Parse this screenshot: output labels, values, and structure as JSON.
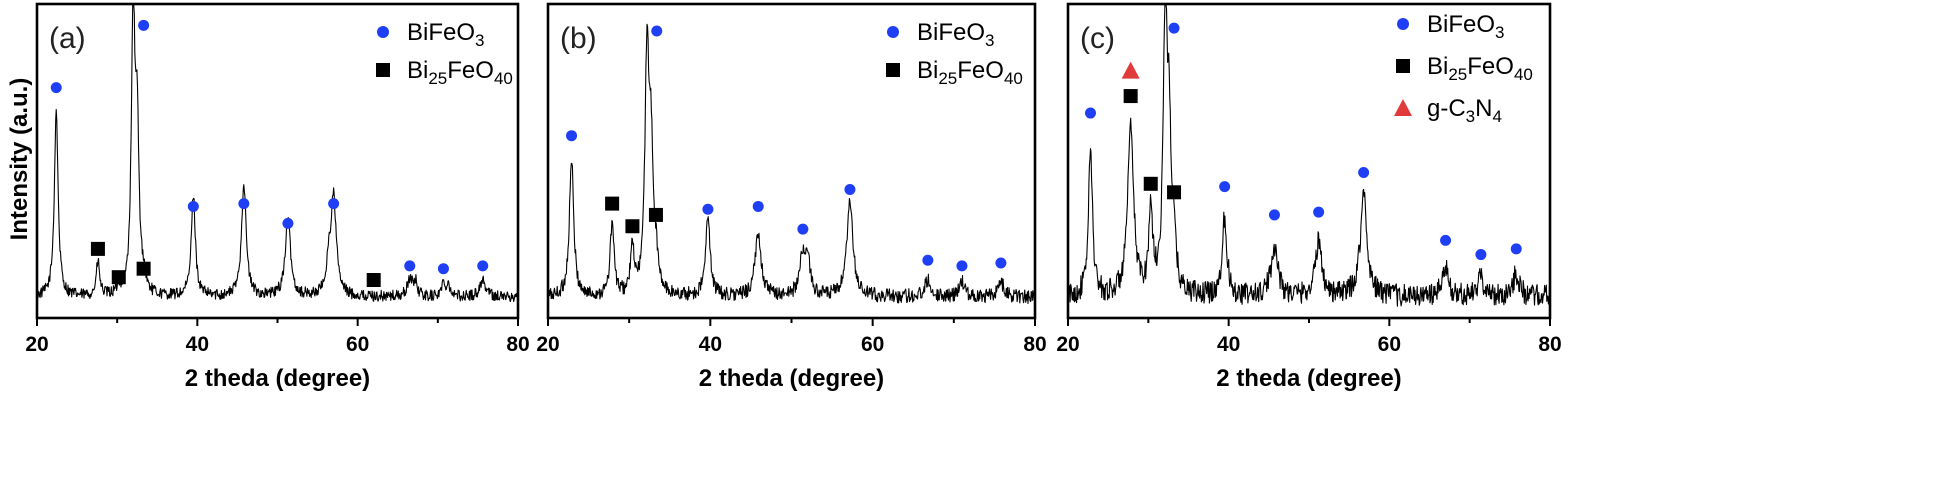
{
  "figure": {
    "ylabel": "Intensity (a.u.)"
  },
  "colors": {
    "bifeo3_marker": "#1f3ff5",
    "bi25feo40_marker": "#000000",
    "gc3n4_marker": "#e03a3a",
    "trace": "#000000"
  },
  "chart_data": [
    {
      "type": "line",
      "panel": "(a)",
      "xlabel": "2 theda (degree)",
      "ylabel": "Intensity (a.u.)",
      "xlim": [
        20,
        80
      ],
      "xticks": [
        20,
        40,
        60,
        80
      ],
      "xtick_labels": [
        "20",
        "40",
        "60",
        "80"
      ],
      "grid": false,
      "legend_position": "top-right",
      "legend": [
        {
          "marker": "circle",
          "text": "BiFeO",
          "sub": "3"
        },
        {
          "marker": "square",
          "text": "Bi",
          "sub": "25",
          "text2": "FeO",
          "sub2": "40"
        }
      ],
      "noise": 0.02,
      "peaks": [
        {
          "x": 22.4,
          "h": 0.66,
          "w": 0.28,
          "phase": "BiFeO3",
          "label_y": 0.74
        },
        {
          "x": 27.6,
          "h": 0.12,
          "w": 0.25,
          "phase": "Bi25FeO40",
          "label_y": 0.17
        },
        {
          "x": 30.2,
          "h": 0.03,
          "w": 0.25,
          "phase": "Bi25FeO40",
          "label_y": 0.07
        },
        {
          "x": 32.0,
          "h": 1.02,
          "w": 0.26
        },
        {
          "x": 32.5,
          "h": 0.55,
          "w": 0.26
        },
        {
          "x": 33.3,
          "h": 0.05,
          "w": 0.3,
          "phase": "Bi25FeO40",
          "label_y": 0.1
        },
        {
          "x": 33.3,
          "h": 0.0,
          "w": 0.3,
          "phase": "BiFeO3",
          "label_y": 0.96
        },
        {
          "x": 39.5,
          "h": 0.36,
          "w": 0.3,
          "phase": "BiFeO3",
          "label_y": 0.32
        },
        {
          "x": 45.8,
          "h": 0.4,
          "w": 0.35,
          "phase": "BiFeO3",
          "label_y": 0.33
        },
        {
          "x": 51.3,
          "h": 0.27,
          "w": 0.4,
          "phase": "BiFeO3",
          "label_y": 0.26
        },
        {
          "x": 56.4,
          "h": 0.1,
          "w": 0.35
        },
        {
          "x": 57.0,
          "h": 0.34,
          "w": 0.4,
          "phase": "BiFeO3",
          "label_y": 0.33
        },
        {
          "x": 62.0,
          "h": 0.0,
          "w": 0.4,
          "phase": "Bi25FeO40",
          "label_y": 0.06
        },
        {
          "x": 66.5,
          "h": 0.06,
          "w": 0.35,
          "phase": "BiFeO3",
          "label_y": 0.11
        },
        {
          "x": 67.2,
          "h": 0.05,
          "w": 0.3
        },
        {
          "x": 70.7,
          "h": 0.04,
          "w": 0.35,
          "phase": "BiFeO3",
          "label_y": 0.1
        },
        {
          "x": 71.3,
          "h": 0.04,
          "w": 0.3
        },
        {
          "x": 75.6,
          "h": 0.06,
          "w": 0.45,
          "phase": "BiFeO3",
          "label_y": 0.11
        }
      ]
    },
    {
      "type": "line",
      "panel": "(b)",
      "xlabel": "2 theda (degree)",
      "xlim": [
        20,
        80
      ],
      "xticks": [
        20,
        40,
        60,
        80
      ],
      "xtick_labels": [
        "20",
        "40",
        "60",
        "80"
      ],
      "grid": false,
      "legend_position": "top-right",
      "legend": [
        {
          "marker": "circle",
          "text": "BiFeO",
          "sub": "3"
        },
        {
          "marker": "square",
          "text": "Bi",
          "sub": "25",
          "text2": "FeO",
          "sub2": "40"
        }
      ],
      "noise": 0.025,
      "peaks": [
        {
          "x": 22.9,
          "h": 0.48,
          "w": 0.32,
          "phase": "BiFeO3",
          "label_y": 0.57
        },
        {
          "x": 27.9,
          "h": 0.26,
          "w": 0.28,
          "phase": "Bi25FeO40",
          "label_y": 0.33
        },
        {
          "x": 30.4,
          "h": 0.16,
          "w": 0.28,
          "phase": "Bi25FeO40",
          "label_y": 0.25
        },
        {
          "x": 32.2,
          "h": 0.84,
          "w": 0.3
        },
        {
          "x": 32.7,
          "h": 0.45,
          "w": 0.3
        },
        {
          "x": 33.3,
          "h": 0.1,
          "w": 0.3,
          "phase": "Bi25FeO40",
          "label_y": 0.29
        },
        {
          "x": 33.4,
          "h": 0.0,
          "w": 0.3,
          "phase": "BiFeO3",
          "label_y": 0.94
        },
        {
          "x": 39.7,
          "h": 0.27,
          "w": 0.35,
          "phase": "BiFeO3",
          "label_y": 0.31
        },
        {
          "x": 45.9,
          "h": 0.22,
          "w": 0.45,
          "phase": "BiFeO3",
          "label_y": 0.32
        },
        {
          "x": 51.4,
          "h": 0.14,
          "w": 0.45,
          "phase": "BiFeO3",
          "label_y": 0.24
        },
        {
          "x": 52.0,
          "h": 0.1,
          "w": 0.4
        },
        {
          "x": 57.2,
          "h": 0.33,
          "w": 0.45,
          "phase": "BiFeO3",
          "label_y": 0.38
        },
        {
          "x": 66.8,
          "h": 0.06,
          "w": 0.45,
          "phase": "BiFeO3",
          "label_y": 0.13
        },
        {
          "x": 71.0,
          "h": 0.05,
          "w": 0.45,
          "phase": "BiFeO3",
          "label_y": 0.11
        },
        {
          "x": 75.8,
          "h": 0.05,
          "w": 0.5,
          "phase": "BiFeO3",
          "label_y": 0.12
        }
      ]
    },
    {
      "type": "line",
      "panel": "(c)",
      "xlabel": "2 theda (degree)",
      "xlim": [
        20,
        80
      ],
      "xticks": [
        20,
        40,
        60,
        80
      ],
      "xtick_labels": [
        "20",
        "40",
        "60",
        "80"
      ],
      "grid": false,
      "legend_position": "top-right",
      "legend": [
        {
          "marker": "circle",
          "text": "BiFeO",
          "sub": "3"
        },
        {
          "marker": "square",
          "text": "Bi",
          "sub": "25",
          "text2": "FeO",
          "sub2": "40"
        },
        {
          "marker": "triangle",
          "text": "g-C",
          "sub": "3",
          "text2": "N",
          "sub2": "4"
        }
      ],
      "noise": 0.04,
      "peaks": [
        {
          "x": 22.8,
          "h": 0.52,
          "w": 0.3,
          "phase": "BiFeO3",
          "label_y": 0.65
        },
        {
          "x": 27.8,
          "h": 0.58,
          "w": 0.45,
          "phase": "Bi25FeO40",
          "label_y": 0.71
        },
        {
          "x": 27.8,
          "h": 0.0,
          "w": 0.45,
          "phase": "g-C3N4",
          "label_y": 0.8
        },
        {
          "x": 30.3,
          "h": 0.3,
          "w": 0.28,
          "phase": "Bi25FeO40",
          "label_y": 0.4
        },
        {
          "x": 32.1,
          "h": 0.96,
          "w": 0.3
        },
        {
          "x": 32.6,
          "h": 0.5,
          "w": 0.3
        },
        {
          "x": 33.2,
          "h": 0.14,
          "w": 0.3,
          "phase": "Bi25FeO40",
          "label_y": 0.37
        },
        {
          "x": 33.2,
          "h": 0.0,
          "w": 0.3,
          "phase": "BiFeO3",
          "label_y": 0.95
        },
        {
          "x": 39.5,
          "h": 0.28,
          "w": 0.35,
          "phase": "BiFeO3",
          "label_y": 0.39
        },
        {
          "x": 45.7,
          "h": 0.18,
          "w": 0.5,
          "phase": "BiFeO3",
          "label_y": 0.29
        },
        {
          "x": 51.2,
          "h": 0.19,
          "w": 0.5,
          "phase": "BiFeO3",
          "label_y": 0.3
        },
        {
          "x": 56.8,
          "h": 0.36,
          "w": 0.5,
          "phase": "BiFeO3",
          "label_y": 0.44
        },
        {
          "x": 67.0,
          "h": 0.1,
          "w": 0.45,
          "phase": "BiFeO3",
          "label_y": 0.2
        },
        {
          "x": 71.4,
          "h": 0.07,
          "w": 0.45,
          "phase": "BiFeO3",
          "label_y": 0.15
        },
        {
          "x": 75.8,
          "h": 0.08,
          "w": 0.5,
          "phase": "BiFeO3",
          "label_y": 0.17
        }
      ]
    }
  ]
}
